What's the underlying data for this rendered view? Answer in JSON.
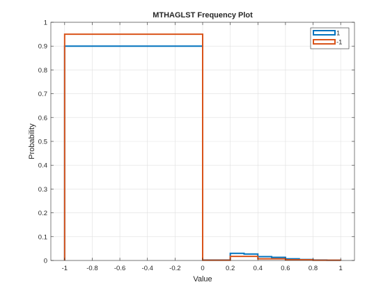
{
  "chart_data": {
    "type": "stairs",
    "title": "MTHAGLST Frequency Plot",
    "xlabel": "Value",
    "ylabel": "Probability",
    "xlim": [
      -1.1,
      1.1
    ],
    "ylim": [
      0,
      1
    ],
    "grid": true,
    "legend_position": "top-right",
    "x_ticks": [
      -1,
      -0.8,
      -0.6,
      -0.4,
      -0.2,
      0,
      0.2,
      0.4,
      0.6,
      0.8,
      1
    ],
    "x_tick_labels": [
      "-1",
      "-0.8",
      "-0.6",
      "-0.4",
      "-0.2",
      "0",
      "0.2",
      "0.4",
      "0.6",
      "0.8",
      "1"
    ],
    "y_ticks": [
      0,
      0.1,
      0.2,
      0.3,
      0.4,
      0.5,
      0.6,
      0.7,
      0.8,
      0.9,
      1
    ],
    "y_tick_labels": [
      "0",
      "0.1",
      "0.2",
      "0.3",
      "0.4",
      "0.5",
      "0.6",
      "0.7",
      "0.8",
      "0.9",
      "1"
    ],
    "series": [
      {
        "name": "1",
        "color": "#0072BD",
        "x": [
          -1,
          0,
          0.2,
          0.3,
          0.4,
          0.5,
          0.6,
          0.7,
          0.8,
          0.9,
          1
        ],
        "y": [
          0.9,
          0.002,
          0.03,
          0.027,
          0.016,
          0.013,
          0.007,
          0.004,
          0.002,
          0.001,
          0
        ]
      },
      {
        "name": "-1",
        "color": "#D95319",
        "x": [
          -1,
          0,
          0.2,
          0.4,
          0.6,
          0.8,
          1
        ],
        "y": [
          0.95,
          0.001,
          0.017,
          0.007,
          0.003,
          0.001,
          0
        ]
      }
    ]
  }
}
